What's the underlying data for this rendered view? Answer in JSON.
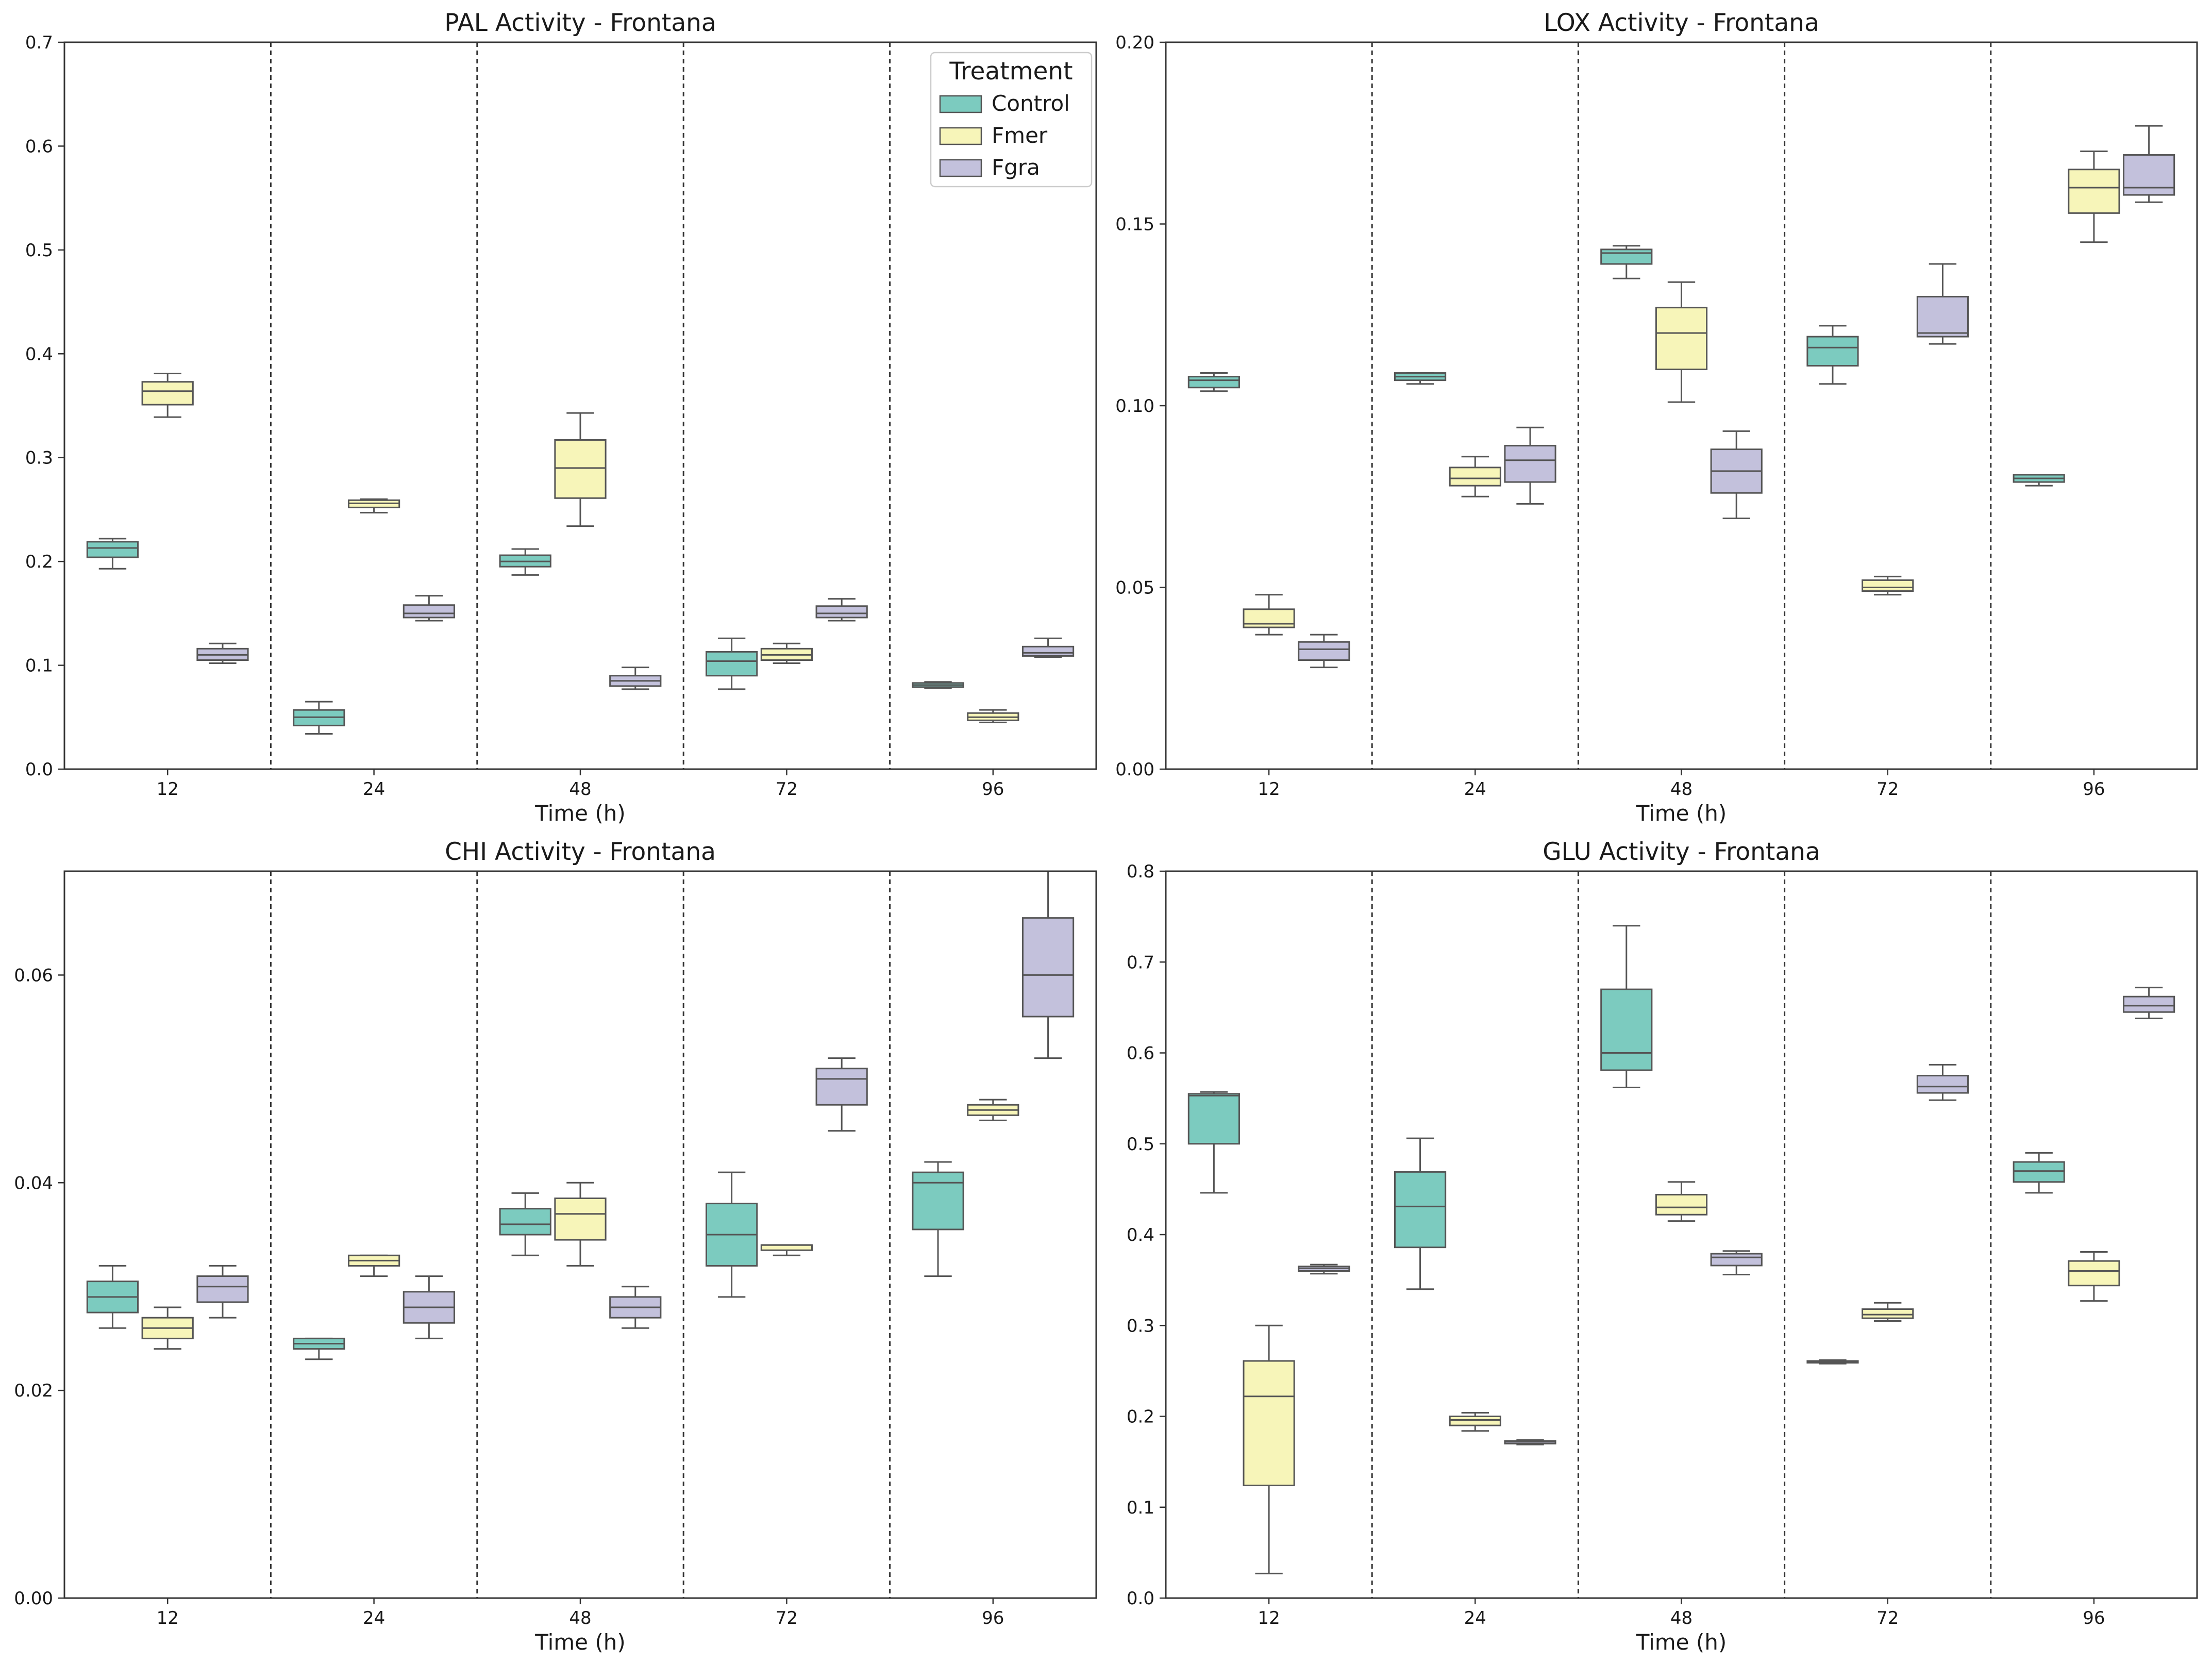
{
  "colors": {
    "Control": "#7ccbbf",
    "Fmer": "#f7f5b9",
    "Fgra": "#c3c1dc",
    "edge": "#555555",
    "axis": "#333333",
    "separator": "#333333"
  },
  "legend": {
    "title": "Treatment",
    "placement": "top-right",
    "entries": [
      "Control",
      "Fmer",
      "Fgra"
    ]
  },
  "chart_data": [
    {
      "type": "box",
      "title": "PAL Activity - Frontana",
      "xlabel": "Time (h)",
      "ylabel": "",
      "categories": [
        "12",
        "24",
        "48",
        "72",
        "96"
      ],
      "ylim": [
        0,
        0.7
      ],
      "yticks": [
        0.0,
        0.1,
        0.2,
        0.3,
        0.4,
        0.5,
        0.6,
        0.7
      ],
      "ytick_labels": [
        "0.0",
        "0.1",
        "0.2",
        "0.3",
        "0.4",
        "0.5",
        "0.6",
        "0.7"
      ],
      "show_legend": true,
      "series": [
        {
          "name": "Control",
          "boxes": [
            {
              "min": 0.193,
              "q1": 0.204,
              "median": 0.213,
              "q3": 0.219,
              "max": 0.222
            },
            {
              "min": 0.034,
              "q1": 0.042,
              "median": 0.05,
              "q3": 0.057,
              "max": 0.065
            },
            {
              "min": 0.187,
              "q1": 0.195,
              "median": 0.2,
              "q3": 0.206,
              "max": 0.212
            },
            {
              "min": 0.077,
              "q1": 0.09,
              "median": 0.104,
              "q3": 0.113,
              "max": 0.126
            },
            {
              "min": 0.078,
              "q1": 0.079,
              "median": 0.081,
              "q3": 0.083,
              "max": 0.084
            }
          ]
        },
        {
          "name": "Fmer",
          "boxes": [
            {
              "min": 0.339,
              "q1": 0.351,
              "median": 0.364,
              "q3": 0.373,
              "max": 0.381
            },
            {
              "min": 0.247,
              "q1": 0.252,
              "median": 0.256,
              "q3": 0.259,
              "max": 0.26
            },
            {
              "min": 0.234,
              "q1": 0.261,
              "median": 0.29,
              "q3": 0.317,
              "max": 0.343
            },
            {
              "min": 0.102,
              "q1": 0.105,
              "median": 0.11,
              "q3": 0.116,
              "max": 0.121
            },
            {
              "min": 0.045,
              "q1": 0.047,
              "median": 0.05,
              "q3": 0.054,
              "max": 0.057
            }
          ]
        },
        {
          "name": "Fgra",
          "boxes": [
            {
              "min": 0.102,
              "q1": 0.105,
              "median": 0.11,
              "q3": 0.116,
              "max": 0.121
            },
            {
              "min": 0.143,
              "q1": 0.146,
              "median": 0.15,
              "q3": 0.158,
              "max": 0.167
            },
            {
              "min": 0.077,
              "q1": 0.08,
              "median": 0.085,
              "q3": 0.09,
              "max": 0.098
            },
            {
              "min": 0.143,
              "q1": 0.146,
              "median": 0.15,
              "q3": 0.157,
              "max": 0.164
            },
            {
              "min": 0.108,
              "q1": 0.109,
              "median": 0.112,
              "q3": 0.118,
              "max": 0.126
            }
          ]
        }
      ]
    },
    {
      "type": "box",
      "title": "LOX Activity - Frontana",
      "xlabel": "Time (h)",
      "ylabel": "",
      "categories": [
        "12",
        "24",
        "48",
        "72",
        "96"
      ],
      "ylim": [
        0,
        0.2
      ],
      "yticks": [
        0.0,
        0.05,
        0.1,
        0.15,
        0.2
      ],
      "ytick_labels": [
        "0.00",
        "0.05",
        "0.10",
        "0.15",
        "0.20"
      ],
      "show_legend": false,
      "series": [
        {
          "name": "Control",
          "boxes": [
            {
              "min": 0.104,
              "q1": 0.105,
              "median": 0.107,
              "q3": 0.108,
              "max": 0.109
            },
            {
              "min": 0.106,
              "q1": 0.107,
              "median": 0.108,
              "q3": 0.109,
              "max": 0.109
            },
            {
              "min": 0.135,
              "q1": 0.139,
              "median": 0.142,
              "q3": 0.143,
              "max": 0.144
            },
            {
              "min": 0.106,
              "q1": 0.111,
              "median": 0.116,
              "q3": 0.119,
              "max": 0.122
            },
            {
              "min": 0.078,
              "q1": 0.079,
              "median": 0.08,
              "q3": 0.081,
              "max": 0.081
            }
          ]
        },
        {
          "name": "Fmer",
          "boxes": [
            {
              "min": 0.037,
              "q1": 0.039,
              "median": 0.04,
              "q3": 0.044,
              "max": 0.048
            },
            {
              "min": 0.075,
              "q1": 0.078,
              "median": 0.08,
              "q3": 0.083,
              "max": 0.086
            },
            {
              "min": 0.101,
              "q1": 0.11,
              "median": 0.12,
              "q3": 0.127,
              "max": 0.134
            },
            {
              "min": 0.048,
              "q1": 0.049,
              "median": 0.05,
              "q3": 0.052,
              "max": 0.053
            },
            {
              "min": 0.145,
              "q1": 0.153,
              "median": 0.16,
              "q3": 0.165,
              "max": 0.17
            }
          ]
        },
        {
          "name": "Fgra",
          "boxes": [
            {
              "min": 0.028,
              "q1": 0.03,
              "median": 0.033,
              "q3": 0.035,
              "max": 0.037
            },
            {
              "min": 0.073,
              "q1": 0.079,
              "median": 0.085,
              "q3": 0.089,
              "max": 0.094
            },
            {
              "min": 0.069,
              "q1": 0.076,
              "median": 0.082,
              "q3": 0.088,
              "max": 0.093
            },
            {
              "min": 0.117,
              "q1": 0.119,
              "median": 0.12,
              "q3": 0.13,
              "max": 0.139
            },
            {
              "min": 0.156,
              "q1": 0.158,
              "median": 0.16,
              "q3": 0.169,
              "max": 0.177
            }
          ]
        }
      ]
    },
    {
      "type": "box",
      "title": "CHI Activity - Frontana",
      "xlabel": "Time (h)",
      "ylabel": "",
      "categories": [
        "12",
        "24",
        "48",
        "72",
        "96"
      ],
      "ylim": [
        0,
        0.07
      ],
      "yticks": [
        0.0,
        0.02,
        0.04,
        0.06
      ],
      "ytick_labels": [
        "0.00",
        "0.02",
        "0.04",
        "0.06"
      ],
      "show_legend": false,
      "series": [
        {
          "name": "Control",
          "boxes": [
            {
              "min": 0.026,
              "q1": 0.0275,
              "median": 0.029,
              "q3": 0.0305,
              "max": 0.032
            },
            {
              "min": 0.023,
              "q1": 0.024,
              "median": 0.0245,
              "q3": 0.025,
              "max": 0.025
            },
            {
              "min": 0.033,
              "q1": 0.035,
              "median": 0.036,
              "q3": 0.0375,
              "max": 0.039
            },
            {
              "min": 0.029,
              "q1": 0.032,
              "median": 0.035,
              "q3": 0.038,
              "max": 0.041
            },
            {
              "min": 0.031,
              "q1": 0.0355,
              "median": 0.04,
              "q3": 0.041,
              "max": 0.042
            }
          ]
        },
        {
          "name": "Fmer",
          "boxes": [
            {
              "min": 0.024,
              "q1": 0.025,
              "median": 0.026,
              "q3": 0.027,
              "max": 0.028
            },
            {
              "min": 0.031,
              "q1": 0.032,
              "median": 0.0325,
              "q3": 0.033,
              "max": 0.033
            },
            {
              "min": 0.032,
              "q1": 0.0345,
              "median": 0.037,
              "q3": 0.0385,
              "max": 0.04
            },
            {
              "min": 0.033,
              "q1": 0.0335,
              "median": 0.034,
              "q3": 0.034,
              "max": 0.034
            },
            {
              "min": 0.046,
              "q1": 0.0465,
              "median": 0.047,
              "q3": 0.0475,
              "max": 0.048
            }
          ]
        },
        {
          "name": "Fgra",
          "boxes": [
            {
              "min": 0.027,
              "q1": 0.0285,
              "median": 0.03,
              "q3": 0.031,
              "max": 0.032
            },
            {
              "min": 0.025,
              "q1": 0.0265,
              "median": 0.028,
              "q3": 0.0295,
              "max": 0.031
            },
            {
              "min": 0.026,
              "q1": 0.027,
              "median": 0.028,
              "q3": 0.029,
              "max": 0.03
            },
            {
              "min": 0.045,
              "q1": 0.0475,
              "median": 0.05,
              "q3": 0.051,
              "max": 0.052
            },
            {
              "min": 0.052,
              "q1": 0.056,
              "median": 0.06,
              "q3": 0.0655,
              "max": 0.071
            }
          ]
        }
      ]
    },
    {
      "type": "box",
      "title": "GLU Activity - Frontana",
      "xlabel": "Time (h)",
      "ylabel": "",
      "categories": [
        "12",
        "24",
        "48",
        "72",
        "96"
      ],
      "ylim": [
        0,
        0.8
      ],
      "yticks": [
        0.0,
        0.1,
        0.2,
        0.3,
        0.4,
        0.5,
        0.6,
        0.7,
        0.8
      ],
      "ytick_labels": [
        "0.0",
        "0.1",
        "0.2",
        "0.3",
        "0.4",
        "0.5",
        "0.6",
        "0.7",
        "0.8"
      ],
      "show_legend": false,
      "series": [
        {
          "name": "Control",
          "boxes": [
            {
              "min": 0.446,
              "q1": 0.5,
              "median": 0.553,
              "q3": 0.555,
              "max": 0.557
            },
            {
              "min": 0.34,
              "q1": 0.386,
              "median": 0.431,
              "q3": 0.469,
              "max": 0.506
            },
            {
              "min": 0.562,
              "q1": 0.581,
              "median": 0.6,
              "q3": 0.67,
              "max": 0.74
            },
            {
              "min": 0.258,
              "q1": 0.259,
              "median": 0.26,
              "q3": 0.261,
              "max": 0.262
            },
            {
              "min": 0.446,
              "q1": 0.458,
              "median": 0.47,
              "q3": 0.48,
              "max": 0.49
            }
          ]
        },
        {
          "name": "Fmer",
          "boxes": [
            {
              "min": 0.027,
              "q1": 0.124,
              "median": 0.222,
              "q3": 0.261,
              "max": 0.3
            },
            {
              "min": 0.184,
              "q1": 0.19,
              "median": 0.196,
              "q3": 0.2,
              "max": 0.204
            },
            {
              "min": 0.415,
              "q1": 0.422,
              "median": 0.43,
              "q3": 0.444,
              "max": 0.458
            },
            {
              "min": 0.305,
              "q1": 0.308,
              "median": 0.312,
              "q3": 0.318,
              "max": 0.325
            },
            {
              "min": 0.327,
              "q1": 0.344,
              "median": 0.36,
              "q3": 0.371,
              "max": 0.381
            }
          ]
        },
        {
          "name": "Fgra",
          "boxes": [
            {
              "min": 0.357,
              "q1": 0.36,
              "median": 0.363,
              "q3": 0.365,
              "max": 0.367
            },
            {
              "min": 0.169,
              "q1": 0.17,
              "median": 0.172,
              "q3": 0.173,
              "max": 0.174
            },
            {
              "min": 0.356,
              "q1": 0.366,
              "median": 0.375,
              "q3": 0.379,
              "max": 0.382
            },
            {
              "min": 0.548,
              "q1": 0.556,
              "median": 0.563,
              "q3": 0.575,
              "max": 0.587
            },
            {
              "min": 0.638,
              "q1": 0.645,
              "median": 0.652,
              "q3": 0.662,
              "max": 0.672
            }
          ]
        }
      ]
    }
  ]
}
